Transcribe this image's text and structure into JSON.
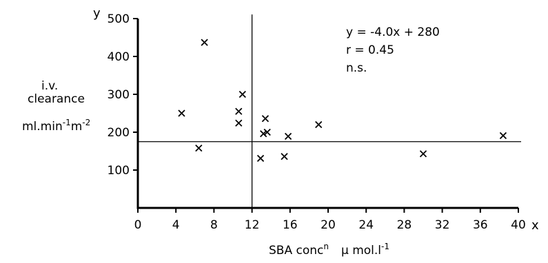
{
  "chart_data": {
    "type": "scatter",
    "x_axis": {
      "label_text": "SBA conc",
      "label_sup": "n",
      "unit_text": "µ mol.l",
      "unit_sup": "-1",
      "end_label": "x",
      "range": [
        0,
        40
      ],
      "ticks": [
        0,
        4,
        8,
        12,
        16,
        20,
        24,
        28,
        32,
        36,
        40
      ]
    },
    "y_axis": {
      "end_label": "y",
      "label_line1": "i.v.",
      "label_line2": "clearance",
      "label_line3a": "ml.min",
      "label_sup1": "-1",
      "label_line3b": "m",
      "label_sup2": "-2",
      "range": [
        0,
        500
      ],
      "ticks": [
        100,
        200,
        300,
        400,
        500
      ]
    },
    "points": [
      {
        "x": 4.6,
        "y": 250
      },
      {
        "x": 6.4,
        "y": 158
      },
      {
        "x": 7.0,
        "y": 437
      },
      {
        "x": 10.6,
        "y": 255
      },
      {
        "x": 10.6,
        "y": 224
      },
      {
        "x": 11.0,
        "y": 300
      },
      {
        "x": 12.9,
        "y": 131
      },
      {
        "x": 13.2,
        "y": 196
      },
      {
        "x": 13.4,
        "y": 236
      },
      {
        "x": 13.6,
        "y": 200
      },
      {
        "x": 15.4,
        "y": 136
      },
      {
        "x": 15.8,
        "y": 189
      },
      {
        "x": 19.0,
        "y": 220
      },
      {
        "x": 30.0,
        "y": 143
      },
      {
        "x": 38.4,
        "y": 191
      }
    ],
    "reference_lines": {
      "vertical_x": 12,
      "horizontal_y": 175
    },
    "annotations": [
      "y = -4.0x + 280",
      "r = 0.45",
      "n.s."
    ],
    "grid": false,
    "legend": "none"
  }
}
